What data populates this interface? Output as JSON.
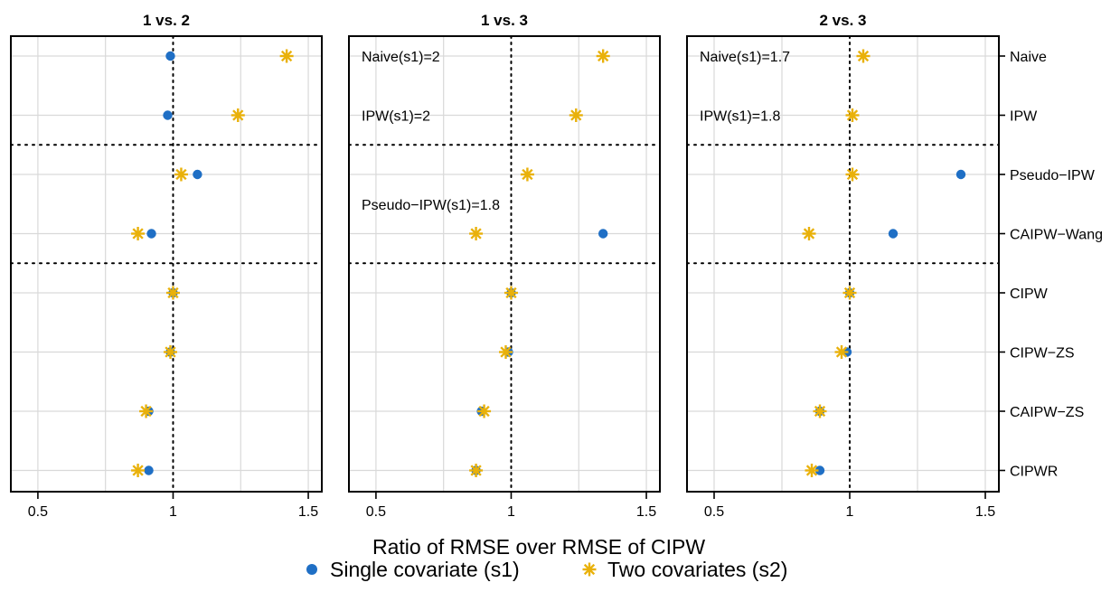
{
  "chart_data": {
    "type": "scatter",
    "xlabel": "Ratio of RMSE over RMSE of CIPW",
    "methods": [
      "Naive",
      "IPW",
      "Pseudo−IPW",
      "CAIPW−Wang",
      "CIPW",
      "CIPW−ZS",
      "CAIPW−ZS",
      "CIPWR"
    ],
    "xlim": [
      0.4,
      1.55
    ],
    "xticks": [
      0.5,
      1,
      1.5
    ],
    "xtick_labels": [
      "0.5",
      "1",
      "1.5"
    ],
    "reference_line_x": 1,
    "group_separators_after": [
      "IPW",
      "CAIPW−Wang"
    ],
    "grid": true,
    "legend": {
      "placement": "bottom",
      "entries": [
        {
          "name": "Single covariate (s1)",
          "marker": "dot",
          "color": "#1f6fc5"
        },
        {
          "name": "Two covariates (s2)",
          "marker": "asterisk",
          "color": "#e9b10a"
        }
      ]
    },
    "panels": [
      {
        "title": "1 vs. 2",
        "series": [
          {
            "name": "Single covariate (s1)",
            "values": [
              0.99,
              0.98,
              1.09,
              0.92,
              1.0,
              0.99,
              0.91,
              0.91
            ]
          },
          {
            "name": "Two covariates (s2)",
            "values": [
              1.42,
              1.24,
              1.03,
              0.87,
              1.0,
              0.99,
              0.9,
              0.87
            ]
          }
        ],
        "annotations": []
      },
      {
        "title": "1 vs. 3",
        "series": [
          {
            "name": "Single covariate (s1)",
            "values": [
              null,
              null,
              null,
              1.34,
              1.0,
              0.99,
              0.89,
              0.87
            ]
          },
          {
            "name": "Two covariates (s2)",
            "values": [
              1.34,
              1.24,
              1.06,
              0.87,
              1.0,
              0.98,
              0.9,
              0.87
            ]
          }
        ],
        "annotations": [
          {
            "method": "Naive",
            "text": "Naive(s1)=2"
          },
          {
            "method": "IPW",
            "text": "IPW(s1)=2"
          },
          {
            "method": "Pseudo−IPW",
            "text": "Pseudo−IPW(s1)=1.8",
            "below": true
          }
        ]
      },
      {
        "title": "2 vs. 3",
        "series": [
          {
            "name": "Single covariate (s1)",
            "values": [
              null,
              null,
              1.41,
              1.16,
              1.0,
              0.99,
              0.89,
              0.89
            ]
          },
          {
            "name": "Two covariates (s2)",
            "values": [
              1.05,
              1.01,
              1.01,
              0.85,
              1.0,
              0.97,
              0.89,
              0.86
            ]
          }
        ],
        "annotations": [
          {
            "method": "Naive",
            "text": "Naive(s1)=1.7"
          },
          {
            "method": "IPW",
            "text": "IPW(s1)=1.8"
          }
        ]
      }
    ]
  }
}
